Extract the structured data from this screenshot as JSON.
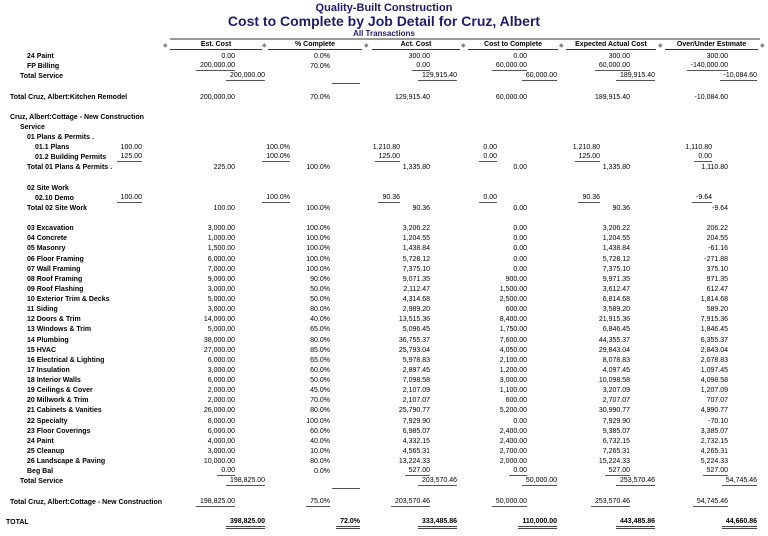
{
  "report": {
    "company": "Quality-Built Construction",
    "title": "Cost to Complete by Job Detail for Cruz, Albert",
    "subtitle": "All Transactions"
  },
  "columns": [
    "Est. Cost",
    "% Complete",
    "Act. Cost",
    "Cost to Complete",
    "Expected Actual Cost",
    "Over/Under Estimate"
  ],
  "rows": [
    {
      "label": "24 Paint",
      "level": 2,
      "cols": "d",
      "values": [
        "0.00",
        "0.0%",
        "300.00",
        "0.00",
        "300.00",
        "300.00"
      ]
    },
    {
      "label": "FP Billing",
      "level": 2,
      "cols": "d",
      "values": [
        "200,000.00",
        "70.0%",
        "0.00",
        "60,000.00",
        "60,000.00",
        "-140,000.00"
      ],
      "underline": [
        1,
        0,
        1,
        1,
        1,
        1
      ]
    },
    {
      "label": "Total Service",
      "level": 1,
      "cols": "t",
      "values": [
        "200,000.00",
        "",
        "129,915.40",
        "60,000.00",
        "189,915.40",
        "-10,084.60"
      ],
      "underline": [
        1,
        1,
        1,
        1,
        1,
        1
      ]
    },
    {
      "blank": true
    },
    {
      "label": "Total Cruz, Albert:Kitchen Remodel",
      "level": 0,
      "cols": "d",
      "values": [
        "200,000.00",
        "70.0%",
        "129,915.40",
        "60,000.00",
        "189,915.40",
        "-10,084.60"
      ]
    },
    {
      "blank": true
    },
    {
      "label": "Cruz, Albert:Cottage - New Construction",
      "level": 0
    },
    {
      "label": "Service",
      "level": 1
    },
    {
      "label": "01 Plans & Permits .",
      "level": 2
    },
    {
      "label": "01.1 Plans",
      "level": 3,
      "cols": "p",
      "values": [
        "100.00",
        "100.0%",
        "1,210.80",
        "0.00",
        "1,210.80",
        "1,110.80"
      ]
    },
    {
      "label": "01.2 Building Permits",
      "level": 3,
      "cols": "p",
      "values": [
        "125.00",
        "100.0%",
        "125.00",
        "0.00",
        "125.00",
        "0.00"
      ],
      "underline": [
        1,
        1,
        1,
        1,
        1,
        1
      ]
    },
    {
      "label": "Total 01 Plans & Permits .",
      "level": 2,
      "cols": "d",
      "values": [
        "225.00",
        "100.0%",
        "1,335.80",
        "0.00",
        "1,335.80",
        "1,110.80"
      ]
    },
    {
      "blank": true
    },
    {
      "label": "02 Site Work",
      "level": 2
    },
    {
      "label": "02.10 Demo",
      "level": 3,
      "cols": "p",
      "values": [
        "100.00",
        "100.0%",
        "90.36",
        "0.00",
        "90.36",
        "-9.64"
      ],
      "underline": [
        1,
        1,
        1,
        1,
        1,
        1
      ]
    },
    {
      "label": "Total 02 Site Work",
      "level": 2,
      "cols": "d",
      "values": [
        "100.00",
        "100.0%",
        "90.36",
        "0.00",
        "90.36",
        "-9.64"
      ]
    },
    {
      "blank": true
    },
    {
      "label": "03 Excavation",
      "level": 2,
      "cols": "d",
      "values": [
        "3,000.00",
        "100.0%",
        "3,206.22",
        "0.00",
        "3,206.22",
        "206.22"
      ]
    },
    {
      "label": "04 Concrete",
      "level": 2,
      "cols": "d",
      "values": [
        "1,000.00",
        "100.0%",
        "1,204.55",
        "0.00",
        "1,204.55",
        "204.55"
      ]
    },
    {
      "label": "05 Masonry",
      "level": 2,
      "cols": "d",
      "values": [
        "1,500.00",
        "100.0%",
        "1,438.84",
        "0.00",
        "1,438.84",
        "-61.16"
      ]
    },
    {
      "label": "06 Floor Framing",
      "level": 2,
      "cols": "d",
      "values": [
        "6,000.00",
        "100.0%",
        "5,728.12",
        "0.00",
        "5,728.12",
        "-271.88"
      ]
    },
    {
      "label": "07 Wall Framing",
      "level": 2,
      "cols": "d",
      "values": [
        "7,000.00",
        "100.0%",
        "7,375.10",
        "0.00",
        "7,375.10",
        "375.10"
      ]
    },
    {
      "label": "08 Roof Framing",
      "level": 2,
      "cols": "d",
      "values": [
        "9,000.00",
        "90.0%",
        "9,071.35",
        "900.00",
        "9,971.35",
        "971.35"
      ]
    },
    {
      "label": "09 Roof Flashing",
      "level": 2,
      "cols": "d",
      "values": [
        "3,000.00",
        "50.0%",
        "2,112.47",
        "1,500.00",
        "3,612.47",
        "612.47"
      ]
    },
    {
      "label": "10 Exterior Trim & Decks",
      "level": 2,
      "cols": "d",
      "values": [
        "5,000.00",
        "50.0%",
        "4,314.68",
        "2,500.00",
        "6,814.68",
        "1,814.68"
      ]
    },
    {
      "label": "11 Siding",
      "level": 2,
      "cols": "d",
      "values": [
        "3,000.00",
        "80.0%",
        "2,989.20",
        "600.00",
        "3,589.20",
        "589.20"
      ]
    },
    {
      "label": "12 Doors & Trim",
      "level": 2,
      "cols": "d",
      "values": [
        "14,000.00",
        "40.0%",
        "13,515.36",
        "8,400.00",
        "21,915.36",
        "7,915.36"
      ]
    },
    {
      "label": "13 Windows & Trim",
      "level": 2,
      "cols": "d",
      "values": [
        "5,000.00",
        "65.0%",
        "5,096.45",
        "1,750.00",
        "6,846.45",
        "1,846.45"
      ]
    },
    {
      "label": "14 Plumbing",
      "level": 2,
      "cols": "d",
      "values": [
        "38,000.00",
        "80.0%",
        "36,755.37",
        "7,600.00",
        "44,355.37",
        "6,355.37"
      ]
    },
    {
      "label": "15 HVAC",
      "level": 2,
      "cols": "d",
      "values": [
        "27,000.00",
        "85.0%",
        "25,793.04",
        "4,050.00",
        "29,843.04",
        "2,843.04"
      ]
    },
    {
      "label": "16 Electrical & Lighting",
      "level": 2,
      "cols": "d",
      "values": [
        "6,000.00",
        "65.0%",
        "5,978.83",
        "2,100.00",
        "8,078.83",
        "2,078.83"
      ]
    },
    {
      "label": "17 Insulation",
      "level": 2,
      "cols": "d",
      "values": [
        "3,000.00",
        "60.0%",
        "2,897.45",
        "1,200.00",
        "4,097.45",
        "1,097.45"
      ]
    },
    {
      "label": "18 Interior Walls",
      "level": 2,
      "cols": "d",
      "values": [
        "6,000.00",
        "50.0%",
        "7,098.58",
        "3,000.00",
        "10,098.58",
        "4,098.58"
      ]
    },
    {
      "label": "19 Ceilings & Cover",
      "level": 2,
      "cols": "d",
      "values": [
        "2,000.00",
        "45.0%",
        "2,107.09",
        "1,100.00",
        "3,207.09",
        "1,207.09"
      ]
    },
    {
      "label": "20 Millwork & Trim",
      "level": 2,
      "cols": "d",
      "values": [
        "2,000.00",
        "70.0%",
        "2,107.07",
        "600.00",
        "2,707.07",
        "707.07"
      ]
    },
    {
      "label": "21 Cabinets & Vanities",
      "level": 2,
      "cols": "d",
      "values": [
        "26,000.00",
        "80.0%",
        "25,790.77",
        "5,200.00",
        "30,990.77",
        "4,990.77"
      ]
    },
    {
      "label": "22 Specialty",
      "level": 2,
      "cols": "d",
      "values": [
        "8,000.00",
        "100.0%",
        "7,929.90",
        "0.00",
        "7,929.90",
        "-70.10"
      ]
    },
    {
      "label": "23 Floor Coverings",
      "level": 2,
      "cols": "d",
      "values": [
        "6,000.00",
        "60.0%",
        "6,985.07",
        "2,400.00",
        "9,385.07",
        "3,385.07"
      ]
    },
    {
      "label": "24 Paint",
      "level": 2,
      "cols": "d",
      "values": [
        "4,000.00",
        "40.0%",
        "4,332.15",
        "2,400.00",
        "6,732.15",
        "2,732.15"
      ]
    },
    {
      "label": "25 Cleanup",
      "level": 2,
      "cols": "d",
      "values": [
        "3,000.00",
        "10.0%",
        "4,565.31",
        "2,700.00",
        "7,265.31",
        "4,265.31"
      ]
    },
    {
      "label": "26 Landscape & Paving",
      "level": 2,
      "cols": "d",
      "values": [
        "10,000.00",
        "80.0%",
        "13,224.33",
        "2,000.00",
        "15,224.33",
        "5,224.33"
      ]
    },
    {
      "label": "Beg Bal",
      "level": 2,
      "cols": "d",
      "values": [
        "0.00",
        "0.0%",
        "527.00",
        "0.00",
        "527.00",
        "527.00"
      ],
      "underline": [
        1,
        0,
        1,
        1,
        1,
        1
      ]
    },
    {
      "label": "Total Service",
      "level": 1,
      "cols": "t",
      "values": [
        "198,825.00",
        "",
        "203,570.46",
        "50,000.00",
        "253,570.46",
        "54,745.46"
      ],
      "underline": [
        1,
        1,
        1,
        1,
        1,
        1
      ]
    },
    {
      "blank": true
    },
    {
      "label": "Total Cruz, Albert:Cottage - New Construction",
      "level": 0,
      "cols": "d",
      "values": [
        "198,825.00",
        "75.0%",
        "203,570.46",
        "50,000.00",
        "253,570.46",
        "54,745.46"
      ],
      "underline": [
        1,
        1,
        1,
        1,
        1,
        1
      ]
    },
    {
      "blank": true
    },
    {
      "label": "TOTAL",
      "level": -1,
      "cols": "t",
      "grand": true,
      "values": [
        "398,825.00",
        "72.0%",
        "333,485.86",
        "110,000.00",
        "443,485.86",
        "44,660.86"
      ],
      "underline": [
        1,
        1,
        1,
        1,
        1,
        1
      ]
    }
  ]
}
